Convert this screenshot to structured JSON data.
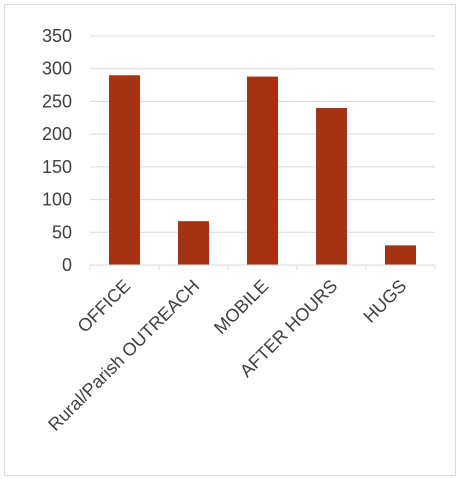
{
  "chart_data": {
    "type": "bar",
    "categories": [
      "OFFICE",
      "Rural/Parish OUTREACH",
      "MOBILE",
      "AFTER HOURS",
      "HUGS"
    ],
    "values": [
      290,
      67,
      288,
      240,
      30
    ],
    "ylim": [
      0,
      350
    ],
    "yticks": [
      0,
      50,
      100,
      150,
      200,
      250,
      300,
      350
    ],
    "grid": true,
    "legend": false,
    "colors": {
      "bar": "#A53212",
      "grid": "#d9d9d9",
      "axis": "#d9d9d9",
      "text": "#404040"
    }
  }
}
